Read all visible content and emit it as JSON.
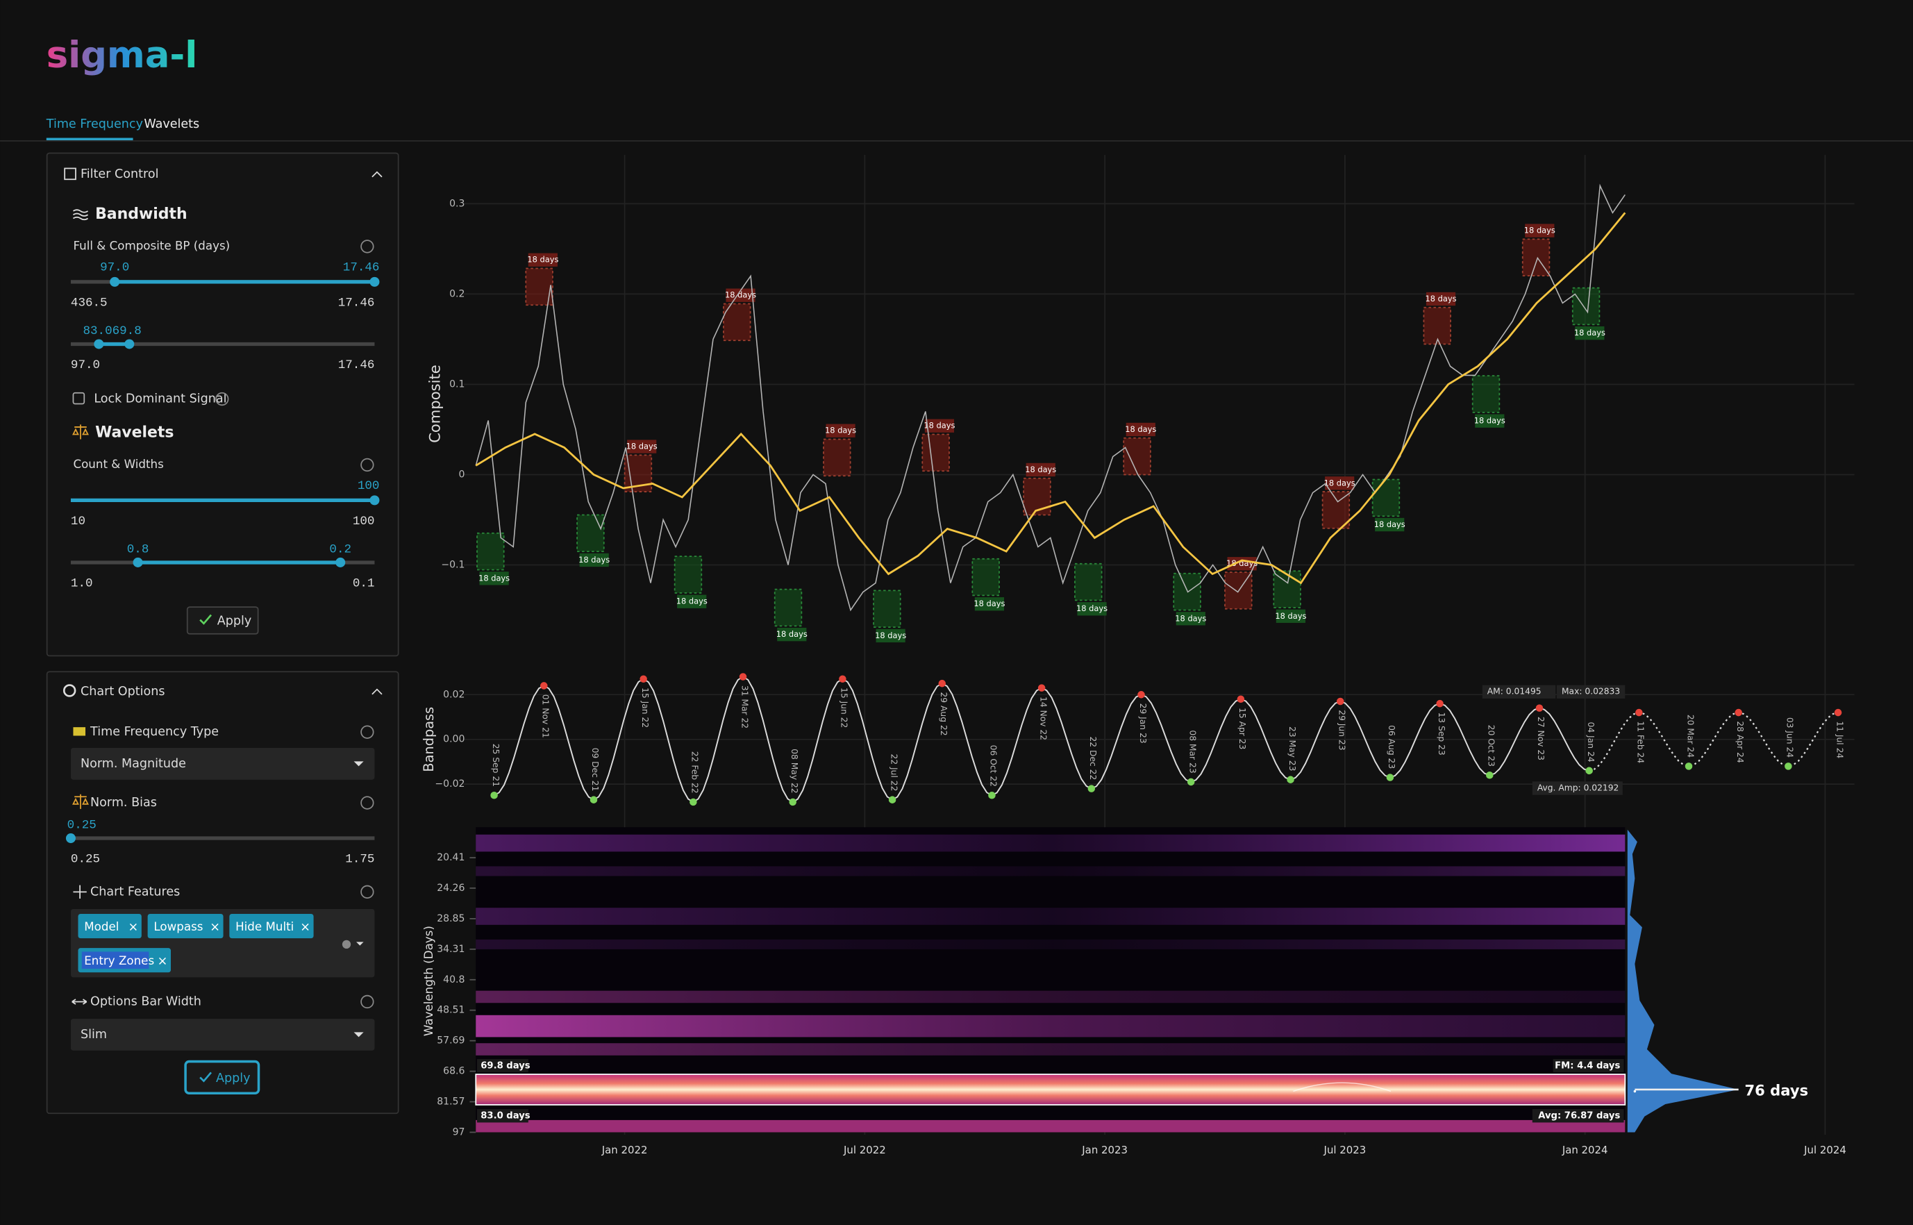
{
  "header": {
    "logo": "sigma-l",
    "tabs": [
      "Time Frequency",
      "Wavelets"
    ]
  },
  "filter_control": {
    "title": "Filter Control",
    "bandwidth": {
      "title": "Bandwidth",
      "label": "Full & Composite BP (days)",
      "slider1": {
        "low_label": "97.0",
        "high_label": "17.46",
        "min_label": "436.5",
        "max_label": "17.46"
      },
      "slider2": {
        "handles_label": "83.069.8",
        "min_label": "97.0",
        "max_label": "17.46"
      }
    },
    "lock_label": "Lock Dominant Signal",
    "wavelets": {
      "title": "Wavelets",
      "label": "Count & Widths",
      "count": {
        "value_label": "100",
        "min_label": "10",
        "max_label": "100"
      },
      "widths": {
        "low_label": "0.8",
        "high_label": "0.2",
        "min_label": "1.0",
        "max_label": "0.1"
      }
    },
    "apply": "Apply"
  },
  "chart_options": {
    "title": "Chart Options",
    "tf_type_label": "Time Frequency Type",
    "tf_type_value": "Norm. Magnitude",
    "bias_label": "Norm. Bias",
    "bias": {
      "value_label": "0.25",
      "min_label": "0.25",
      "max_label": "1.75"
    },
    "features_label": "Chart Features",
    "features": [
      "Model",
      "Lowpass",
      "Hide Multi",
      "Entry Zones"
    ],
    "bar_width_label": "Options Bar Width",
    "bar_width_value": "Slim",
    "apply": "Apply"
  },
  "time_axis": {
    "ticks": [
      "Jan 2022",
      "Jul 2022",
      "Jan 2023",
      "Jul 2023",
      "Jan 2024",
      "Jul 2024"
    ]
  },
  "composite_chart": {
    "ylabel": "Composite",
    "ylim": [
      -0.2,
      0.35
    ],
    "yticks": [
      {
        "value": 0.3,
        "label": "0.3"
      },
      {
        "value": 0.2,
        "label": "0.2"
      },
      {
        "value": 0.1,
        "label": "0.1"
      },
      0,
      {
        "value": -0.1,
        "label": "−0.1"
      }
    ],
    "series": [
      {
        "name": "Composite",
        "color": "#b5b5b5",
        "values": [
          0.01,
          0.06,
          -0.07,
          -0.08,
          0.08,
          0.12,
          0.21,
          0.1,
          0.05,
          -0.03,
          -0.06,
          -0.02,
          0.03,
          -0.06,
          -0.12,
          -0.05,
          -0.08,
          -0.05,
          0.05,
          0.15,
          0.18,
          0.2,
          0.22,
          0.07,
          -0.05,
          -0.1,
          -0.02,
          0.0,
          -0.01,
          -0.1,
          -0.15,
          -0.13,
          -0.12,
          -0.05,
          -0.02,
          0.03,
          0.07,
          -0.04,
          -0.12,
          -0.08,
          -0.07,
          -0.03,
          -0.02,
          0.0,
          -0.04,
          -0.08,
          -0.07,
          -0.12,
          -0.08,
          -0.04,
          -0.02,
          0.02,
          0.03,
          0.0,
          -0.02,
          -0.05,
          -0.1,
          -0.13,
          -0.12,
          -0.1,
          -0.12,
          -0.13,
          -0.11,
          -0.08,
          -0.11,
          -0.12,
          -0.05,
          -0.02,
          -0.01,
          -0.03,
          -0.02,
          0.0,
          -0.02,
          0.0,
          0.02,
          0.07,
          0.11,
          0.15,
          0.12,
          0.11,
          0.11,
          0.13,
          0.15,
          0.17,
          0.2,
          0.24,
          0.22,
          0.19,
          0.2,
          0.18,
          0.32,
          0.29,
          0.31
        ]
      },
      {
        "name": "Lowpass",
        "color": "#f5c542",
        "values": [
          0.01,
          0.03,
          0.045,
          0.03,
          0.0,
          -0.015,
          -0.01,
          -0.025,
          0.01,
          0.045,
          0.01,
          -0.04,
          -0.025,
          -0.07,
          -0.11,
          -0.09,
          -0.06,
          -0.07,
          -0.085,
          -0.04,
          -0.03,
          -0.07,
          -0.05,
          -0.035,
          -0.08,
          -0.11,
          -0.095,
          -0.1,
          -0.12,
          -0.07,
          -0.04,
          0.0,
          0.06,
          0.1,
          0.12,
          0.15,
          0.19,
          0.22,
          0.25,
          0.29
        ]
      }
    ],
    "peak_markers": [
      "18 days",
      "18 days",
      "18 days",
      "18 days",
      "18 days",
      "18 days",
      "18 days",
      "18 days",
      "18 days",
      "18 days",
      "18 days"
    ],
    "trough_markers": [
      "18 days",
      "18 days",
      "18 days",
      "18 days",
      "18 days",
      "18 days",
      "18 days",
      "18 days",
      "18 days",
      "18 days",
      "18 days",
      "18 days"
    ]
  },
  "bandpass_chart": {
    "ylabel": "Bandpass",
    "ylim": [
      -0.03,
      0.03
    ],
    "yticks": [
      0.02,
      {
        "value": 0,
        "label": "0.00"
      },
      {
        "value": -0.02,
        "label": "−0.02"
      }
    ],
    "turning_points": {
      "dates": [
        "25 Sep 21",
        "01 Nov 21",
        "09 Dec 21",
        "15 Jan 22",
        "22 Feb 22",
        "31 Mar 22",
        "08 May 22",
        "15 Jun 22",
        "22 Jul 22",
        "29 Aug 22",
        "06 Oct 22",
        "14 Nov 22",
        "22 Dec 22",
        "29 Jan 23",
        "08 Mar 23",
        "15 Apr 23",
        "23 May 23",
        "29 Jun 23",
        "06 Aug 23",
        "13 Sep 23",
        "20 Oct 23",
        "27 Nov 23",
        "04 Jan 24"
      ],
      "values": [
        -0.025,
        0.024,
        -0.027,
        0.027,
        -0.028,
        0.028,
        -0.028,
        0.027,
        -0.027,
        0.025,
        -0.025,
        0.023,
        -0.022,
        0.02,
        -0.019,
        0.018,
        -0.018,
        0.017,
        -0.017,
        0.016,
        -0.016,
        0.014,
        -0.014
      ]
    },
    "projection": {
      "dates": [
        "11 Feb 24",
        "20 Mar 24",
        "28 Apr 24",
        "03 Jun 24",
        "11 Jul 24"
      ],
      "values": [
        0.012,
        -0.012,
        0.012,
        -0.012,
        0.012
      ]
    },
    "annotations": [
      "AM: 0.01495",
      "Max: 0.02833",
      "Avg. Amp: 0.02192"
    ]
  },
  "wavelet_chart": {
    "ylabel": "Wavelength (Days)",
    "log": true,
    "ylim": [
      17.17,
      97
    ],
    "yticks": [
      20.41,
      24.26,
      28.85,
      34.31,
      40.8,
      48.51,
      57.69,
      68.6,
      81.57,
      97
    ],
    "band_low": {
      "value": 69.8,
      "label": "69.8 days"
    },
    "band_high": {
      "value": 83.0,
      "label": "83.0 days"
    },
    "fm_label": "FM: 4.4 days",
    "avg": {
      "value": 76.87,
      "label": "Avg: 76.87 days"
    },
    "dominant_label": "76 days"
  }
}
